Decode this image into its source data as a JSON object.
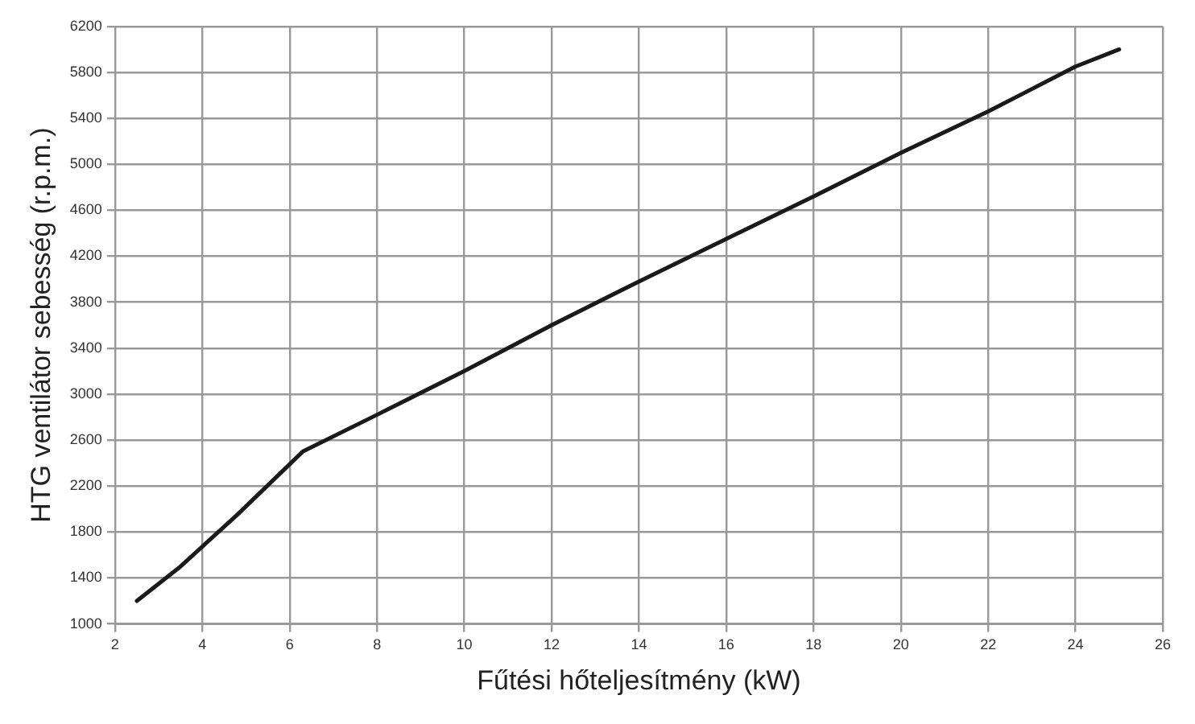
{
  "chart_data": {
    "type": "line",
    "xlabel": "Fűtési hőteljesítmény (kW)",
    "ylabel": "HTG ventilátor sebesség (r.p.m.)",
    "x": [
      2.5,
      3.5,
      4.8,
      6.3,
      8,
      10,
      12,
      14,
      16,
      18,
      20,
      22,
      24,
      25
    ],
    "series": [
      {
        "color": "#1a1a1a",
        "values": [
          1200,
          1500,
          1950,
          2500,
          2820,
          3200,
          3600,
          3980,
          4350,
          4720,
          5100,
          5460,
          5850,
          6000
        ]
      }
    ],
    "xlim": [
      2,
      26
    ],
    "xticks": [
      2,
      4,
      6,
      8,
      10,
      12,
      14,
      16,
      18,
      20,
      22,
      24,
      26
    ],
    "ylim": [
      1000,
      6200
    ],
    "yticks": [
      1000,
      1400,
      1800,
      2200,
      2600,
      3000,
      3400,
      3800,
      4200,
      4600,
      5000,
      5400,
      5800,
      6200
    ],
    "grid": true,
    "marker": "none",
    "line_style": "solid"
  }
}
